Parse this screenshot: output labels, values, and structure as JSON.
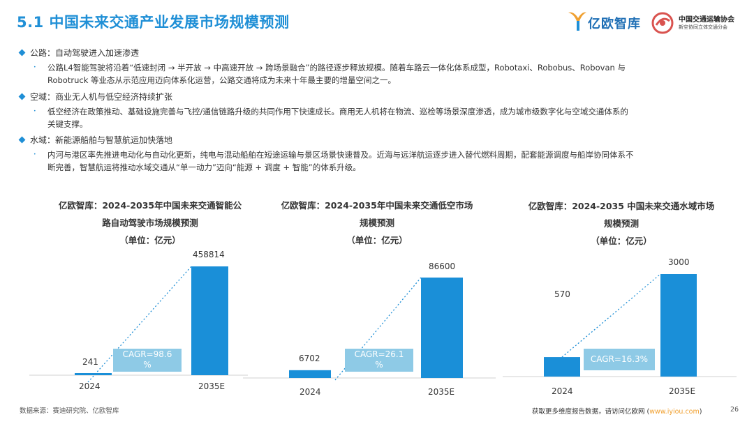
{
  "header": {
    "title": "5.1 中国未来交通产业发展市场规模预测",
    "logo_yiou": "亿欧智库",
    "assoc_name": "中国交通运输协会",
    "assoc_sub": "新空协同立体交通分会"
  },
  "sections": [
    {
      "heading": "公路：自动驾驶进入加速渗透",
      "lines": [
        "公路L4智能驾驶将沿着“低速封闭 → 半开放 → 中高速开放 → 跨场景融合”的路径逐步释放规模。随着车路云一体化体系成型，Robotaxi、Robobus、Robovan 与",
        "Robotruck 等业态从示范应用迈向体系化运营，公路交通将成为未来十年最主要的增量空间之一。"
      ]
    },
    {
      "heading": "空域：商业无人机与低空经济持续扩张",
      "lines": [
        "低空经济在政策推动、基础设施完善与飞控/通信链路升级的共同作用下快速成长。商用无人机将在物流、巡检等场景深度渗透，成为城市级数字化与空域交通体系的",
        "关键支撑。"
      ]
    },
    {
      "heading": "水域：新能源船舶与智慧航运加快落地",
      "lines": [
        "内河与港区率先推进电动化与自动化更新，纯电与混动船舶在短途运输与景区场景快速普及。近海与远洋航运逐步进入替代燃料周期，配套能源调度与船岸协同体系不",
        "断完善，智慧航运将推动水域交通从“单一动力”迈向“能源 + 调度 + 智能”的体系升级。"
      ]
    }
  ],
  "charts_meta": {
    "bullet_glyph": "•"
  },
  "chart_data": [
    {
      "type": "bar",
      "title_lines": [
        "亿欧智库：2024-2035年中国未来交通智能公",
        "路自动驾驶市场规模预测",
        "（单位：亿元）"
      ],
      "categories": [
        "2024",
        "2035E"
      ],
      "values": [
        241,
        458814
      ],
      "value_labels": [
        "241",
        "458814"
      ],
      "cagr": "CAGR=98.6%",
      "cagr_lines": [
        "CAGR=98.6",
        "%"
      ],
      "unit": "亿元"
    },
    {
      "type": "bar",
      "title_lines": [
        "亿欧智库：2024-2035年中国未来交通低空市场",
        "规模预测",
        "（单位：亿元）"
      ],
      "categories": [
        "2024",
        "2035E"
      ],
      "values": [
        6702,
        86600
      ],
      "value_labels": [
        "6702",
        "86600"
      ],
      "cagr": "CAGR=26.1%",
      "cagr_lines": [
        "CAGR=26.1",
        "%"
      ],
      "unit": "亿元"
    },
    {
      "type": "bar",
      "title_lines": [
        "亿欧智库：2024-2035 中国未来交通水域市场",
        "规模预测",
        "（单位：亿元）"
      ],
      "categories": [
        "2024",
        "2035E"
      ],
      "values": [
        570,
        3000
      ],
      "value_labels": [
        "570",
        "3000"
      ],
      "cagr": "CAGR=16.3%",
      "cagr_lines": [
        "CAGR=16.3%"
      ],
      "unit": "亿元"
    }
  ],
  "footer": {
    "source": "数据来源：赛迪研究院、亿欧智库",
    "more_prefix": "获取更多维度报告数据，请访问亿欧网 (",
    "more_link": "www.iyiou.com",
    "more_suffix": ")",
    "page": "26"
  },
  "colors": {
    "accent": "#1f8fd6",
    "bar": "#1a8fd8",
    "cagr_box": "#8ecae6",
    "trend": "#1f8fd6"
  }
}
